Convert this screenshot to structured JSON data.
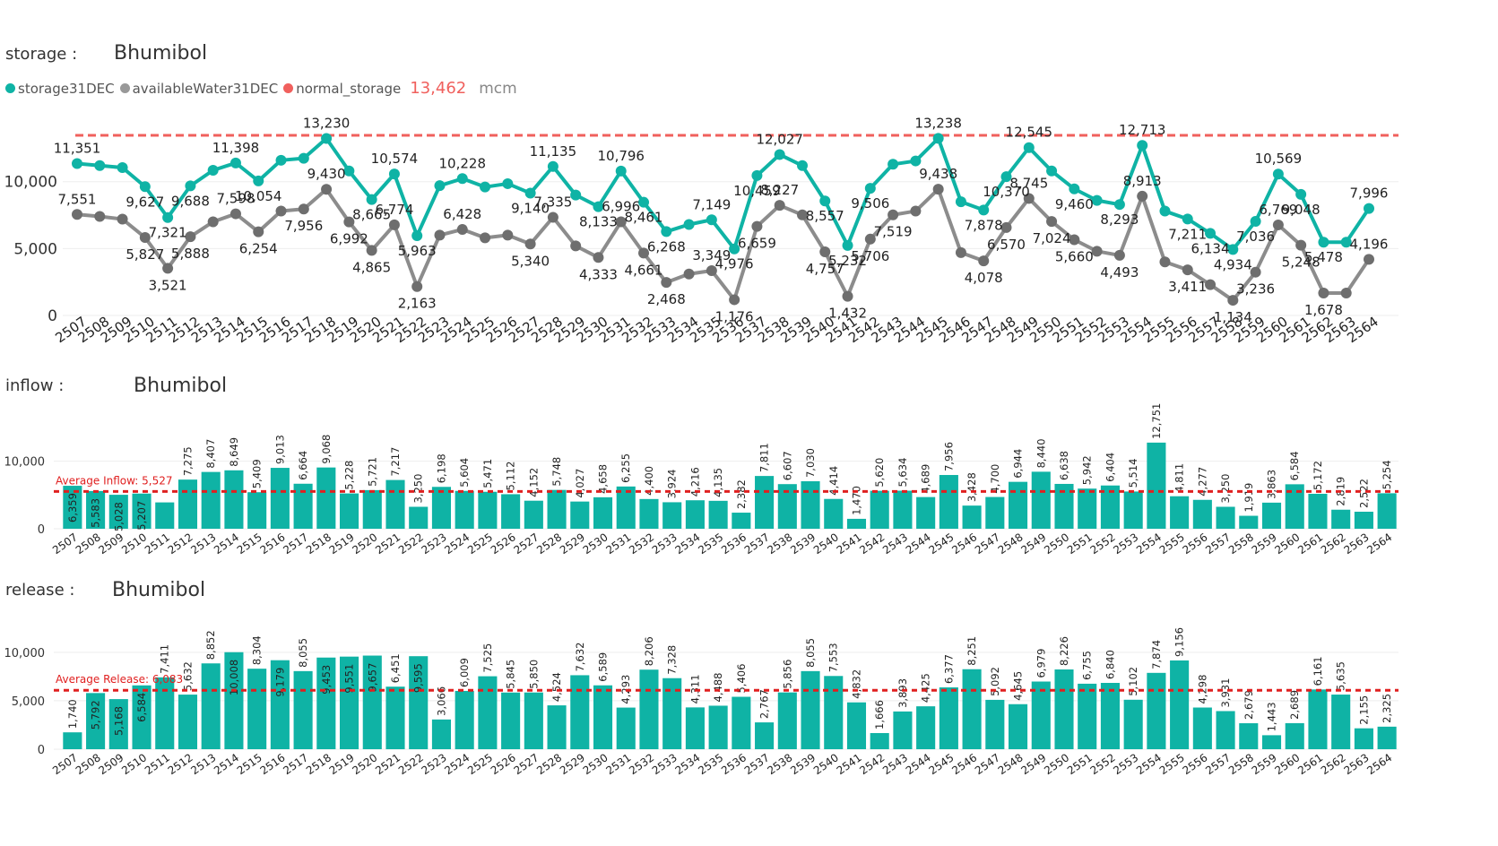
{
  "panels": {
    "storage": {
      "label": "storage :",
      "name": "Bhumibol"
    },
    "inflow": {
      "label": "inflow :",
      "name": "Bhumibol"
    },
    "release": {
      "label": "release :",
      "name": "Bhumibol"
    }
  },
  "legend": {
    "items": [
      {
        "label": "storage31DEC",
        "color": "#0fb3a5"
      },
      {
        "label": "availableWater31DEC",
        "color": "#999999"
      },
      {
        "label": "normal_storage",
        "color": "#f0605d"
      }
    ],
    "normal_value": "13,462",
    "unit": "mcm"
  },
  "colors": {
    "teal": "#0fb3a5",
    "gray": "#8c8c8c",
    "red": "#f0605d",
    "avg": "#e02020"
  },
  "chart_data": [
    {
      "type": "line",
      "title": "Bhumibol",
      "categories": [
        "2507",
        "2508",
        "2509",
        "2510",
        "2511",
        "2512",
        "2513",
        "2514",
        "2515",
        "2516",
        "2517",
        "2518",
        "2519",
        "2520",
        "2521",
        "2522",
        "2523",
        "2524",
        "2525",
        "2526",
        "2527",
        "2528",
        "2529",
        "2530",
        "2531",
        "2532",
        "2533",
        "2534",
        "2535",
        "2536",
        "2537",
        "2538",
        "2539",
        "2540",
        "2541",
        "2542",
        "2543",
        "2544",
        "2545",
        "2546",
        "2547",
        "2548",
        "2549",
        "2550",
        "2551",
        "2552",
        "2553",
        "2554",
        "2555",
        "2556",
        "2557",
        "2558",
        "2559",
        "2560",
        "2561",
        "2562",
        "2563",
        "2564"
      ],
      "yticks": [
        "0",
        "5,000",
        "10,000"
      ],
      "ylim": [
        0,
        14200
      ],
      "normal_storage": 13462,
      "series": [
        {
          "name": "storage31DEC",
          "color": "#0fb3a5",
          "values": [
            11351,
            11200,
            11050,
            9627,
            7321,
            9688,
            10850,
            11398,
            10054,
            11600,
            11750,
            13230,
            10800,
            8665,
            10574,
            5963,
            9700,
            10228,
            9600,
            9850,
            9140,
            11135,
            9000,
            8133,
            10796,
            8461,
            6268,
            6800,
            7149,
            4976,
            10459,
            12027,
            11200,
            8557,
            5232,
            9506,
            11300,
            11550,
            13238,
            8500,
            7878,
            10370,
            12545,
            10800,
            9460,
            8600,
            8293,
            12713,
            7800,
            7211,
            6134,
            4934,
            7036,
            10569,
            9048,
            5478,
            5478,
            7996
          ],
          "labels": [
            "11,351",
            "",
            "",
            "9,627",
            "7,321",
            "9,688",
            "",
            "11,398",
            "10,054",
            "",
            "",
            "13,230",
            "",
            "8,665",
            "10,574",
            "5,963",
            "",
            "10,228",
            "",
            "",
            "9,140",
            "11,135",
            "",
            "8,133",
            "10,796",
            "8,461",
            "6,268",
            "",
            "7,149",
            "4,976",
            "10,459",
            "12,027",
            "",
            "8,557",
            "5,232",
            "9,506",
            "",
            "",
            "13,238",
            "",
            "7,878",
            "10,370",
            "12,545",
            "",
            "9,460",
            "",
            "8,293",
            "12,713",
            "",
            "7,211",
            "6,134",
            "4,934",
            "7,036",
            "10,569",
            "9,048",
            "5,478",
            "",
            "7,996"
          ]
        },
        {
          "name": "availableWater31DEC",
          "color": "#8c8c8c",
          "values": [
            7551,
            7400,
            7200,
            5827,
            3521,
            5888,
            7000,
            7598,
            6254,
            7800,
            7956,
            9430,
            6992,
            4865,
            6774,
            2163,
            6000,
            6428,
            5800,
            6000,
            5340,
            7335,
            5200,
            4333,
            6996,
            4661,
            2468,
            3100,
            3349,
            1176,
            6659,
            8227,
            7519,
            4757,
            1432,
            5706,
            7519,
            7800,
            9438,
            4700,
            4078,
            6570,
            8745,
            7024,
            5660,
            4800,
            4493,
            8913,
            4000,
            3411,
            2300,
            1134,
            3236,
            6769,
            5248,
            1678,
            1678,
            4196
          ],
          "labels": [
            "7,551",
            "",
            "",
            "5,827",
            "3,521",
            "5,888",
            "",
            "7,598",
            "6,254",
            "",
            "7,956",
            "9,430",
            "6,992",
            "4,865",
            "6,774",
            "2,163",
            "",
            "6,428",
            "",
            "",
            "5,340",
            "7,335",
            "",
            "4,333",
            "6,996",
            "4,661",
            "2,468",
            "",
            "3,349",
            "1,176",
            "6,659",
            "8,227",
            "",
            "4,757",
            "1,432",
            "5,706",
            "7,519",
            "",
            "9,438",
            "",
            "4,078",
            "6,570",
            "8,745",
            "7,024",
            "5,660",
            "",
            "4,493",
            "8,913",
            "",
            "3,411",
            "",
            "1,134",
            "3,236",
            "6,769",
            "5,248",
            "1,678",
            "",
            "4,196"
          ]
        }
      ]
    },
    {
      "type": "bar",
      "title": "Bhumibol",
      "categories": [
        "2507",
        "2508",
        "2509",
        "2510",
        "2511",
        "2512",
        "2513",
        "2514",
        "2515",
        "2516",
        "2517",
        "2518",
        "2519",
        "2520",
        "2521",
        "2522",
        "2523",
        "2524",
        "2525",
        "2526",
        "2527",
        "2528",
        "2529",
        "2530",
        "2531",
        "2532",
        "2533",
        "2534",
        "2535",
        "2536",
        "2537",
        "2538",
        "2539",
        "2540",
        "2541",
        "2542",
        "2543",
        "2544",
        "2545",
        "2546",
        "2547",
        "2548",
        "2549",
        "2550",
        "2551",
        "2552",
        "2553",
        "2554",
        "2555",
        "2556",
        "2557",
        "2558",
        "2559",
        "2560",
        "2561",
        "2562",
        "2563",
        "2564"
      ],
      "values": [
        6359,
        5583,
        5028,
        5207,
        3900,
        7275,
        8407,
        8649,
        5409,
        9013,
        6664,
        9068,
        5228,
        5721,
        7217,
        3250,
        6198,
        5604,
        5471,
        5112,
        4152,
        5748,
        4027,
        4658,
        6255,
        4400,
        3924,
        4216,
        4135,
        2382,
        7811,
        6607,
        7030,
        4414,
        1470,
        5620,
        5634,
        4689,
        7956,
        3428,
        4700,
        6944,
        8440,
        6638,
        5942,
        6404,
        5514,
        12751,
        4811,
        4277,
        3250,
        1919,
        3863,
        6584,
        5172,
        2819,
        2522,
        5254
      ],
      "labels": [
        "6,359",
        "5,583",
        "5,028",
        "5,207",
        "",
        "7,275",
        "8,407",
        "8,649",
        "5,409",
        "9,013",
        "6,664",
        "9,068",
        "5,228",
        "5,721",
        "7,217",
        "3,250",
        "6,198",
        "5,604",
        "5,471",
        "5,112",
        "4,152",
        "5,748",
        "4,027",
        "4,658",
        "6,255",
        "4,400",
        "3,924",
        "4,216",
        "4,135",
        "2,382",
        "7,811",
        "6,607",
        "7,030",
        "4,414",
        "1,470",
        "5,620",
        "5,634",
        "4,689",
        "7,956",
        "3,428",
        "4,700",
        "6,944",
        "8,440",
        "6,638",
        "5,942",
        "6,404",
        "5,514",
        "12,751",
        "4,811",
        "4,277",
        "3,250",
        "1,919",
        "3,863",
        "6,584",
        "5,172",
        "2,819",
        "2,522",
        "5,254"
      ],
      "yticks": [
        "0",
        "10,000"
      ],
      "ylim": [
        0,
        13000
      ],
      "average": 5527,
      "average_label": "Average Inflow: 5,527"
    },
    {
      "type": "bar",
      "title": "Bhumibol",
      "categories": [
        "2507",
        "2508",
        "2509",
        "2510",
        "2511",
        "2512",
        "2513",
        "2514",
        "2515",
        "2516",
        "2517",
        "2518",
        "2519",
        "2520",
        "2521",
        "2522",
        "2523",
        "2524",
        "2525",
        "2526",
        "2527",
        "2528",
        "2529",
        "2530",
        "2531",
        "2532",
        "2533",
        "2534",
        "2535",
        "2536",
        "2537",
        "2538",
        "2539",
        "2540",
        "2541",
        "2542",
        "2543",
        "2544",
        "2545",
        "2546",
        "2547",
        "2548",
        "2549",
        "2550",
        "2551",
        "2552",
        "2553",
        "2554",
        "2555",
        "2556",
        "2557",
        "2558",
        "2559",
        "2560",
        "2561",
        "2562",
        "2563",
        "2564"
      ],
      "values": [
        1740,
        5792,
        5168,
        6584,
        7411,
        5632,
        8852,
        10008,
        8304,
        9179,
        8055,
        9453,
        9551,
        9657,
        6451,
        9595,
        3066,
        6009,
        7525,
        5845,
        5850,
        4524,
        7632,
        6589,
        4293,
        8206,
        7328,
        4311,
        4488,
        5406,
        2767,
        5856,
        8055,
        7553,
        4832,
        1666,
        3893,
        4425,
        6377,
        8251,
        5092,
        4645,
        6979,
        8226,
        6755,
        6840,
        5102,
        7874,
        9156,
        4298,
        3931,
        2679,
        1443,
        2689,
        6161,
        5635,
        2155,
        2325
      ],
      "labels": [
        "1,740",
        "5,792",
        "5,168",
        "6,584",
        "7,411",
        "5,632",
        "8,852",
        "10,008",
        "8,304",
        "9,179",
        "8,055",
        "9,453",
        "9,551",
        "9,657",
        "6,451",
        "9,595",
        "3,066",
        "6,009",
        "7,525",
        "5,845",
        "5,850",
        "4,524",
        "7,632",
        "6,589",
        "4,293",
        "8,206",
        "7,328",
        "4,311",
        "4,488",
        "5,406",
        "2,767",
        "5,856",
        "8,055",
        "7,553",
        "4,832",
        "1,666",
        "3,893",
        "4,425",
        "6,377",
        "8,251",
        "5,092",
        "4,645",
        "6,979",
        "8,226",
        "6,755",
        "6,840",
        "5,102",
        "7,874",
        "9,156",
        "4,298",
        "3,931",
        "2,679",
        "1,443",
        "2,689",
        "6,161",
        "5,635",
        "2,155",
        "2,325"
      ],
      "yticks": [
        "0",
        "5,000",
        "10,000"
      ],
      "ylim": [
        0,
        11000
      ],
      "average": 6083,
      "average_label": "Average Release: 6,083"
    }
  ]
}
